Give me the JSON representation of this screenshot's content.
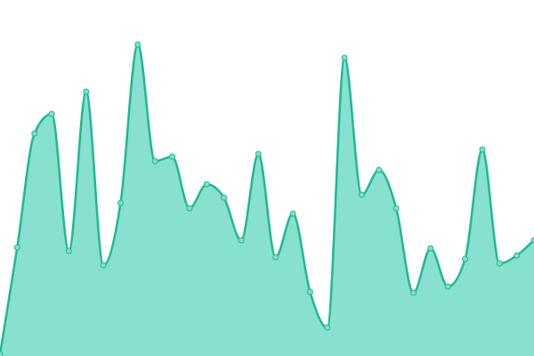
{
  "chart_data": {
    "type": "area",
    "x": [
      0,
      1,
      2,
      3,
      4,
      5,
      6,
      7,
      8,
      9,
      10,
      11,
      12,
      13,
      14,
      15,
      16,
      17,
      18,
      19,
      20,
      21,
      22,
      23,
      24,
      25,
      26,
      27,
      28,
      29,
      30,
      31
    ],
    "values": [
      2,
      122,
      250,
      272,
      118,
      297,
      102,
      172,
      350,
      219,
      224,
      166,
      193,
      178,
      130,
      227,
      111,
      160,
      72,
      32,
      335,
      181,
      209,
      166,
      71,
      121,
      78,
      109,
      232,
      104,
      113,
      130
    ],
    "xlim": [
      0,
      31
    ],
    "ylim": [
      0,
      400
    ],
    "color": "#20b894",
    "fill": "#88e0cf",
    "marker_fill": "#7fe0c8"
  }
}
